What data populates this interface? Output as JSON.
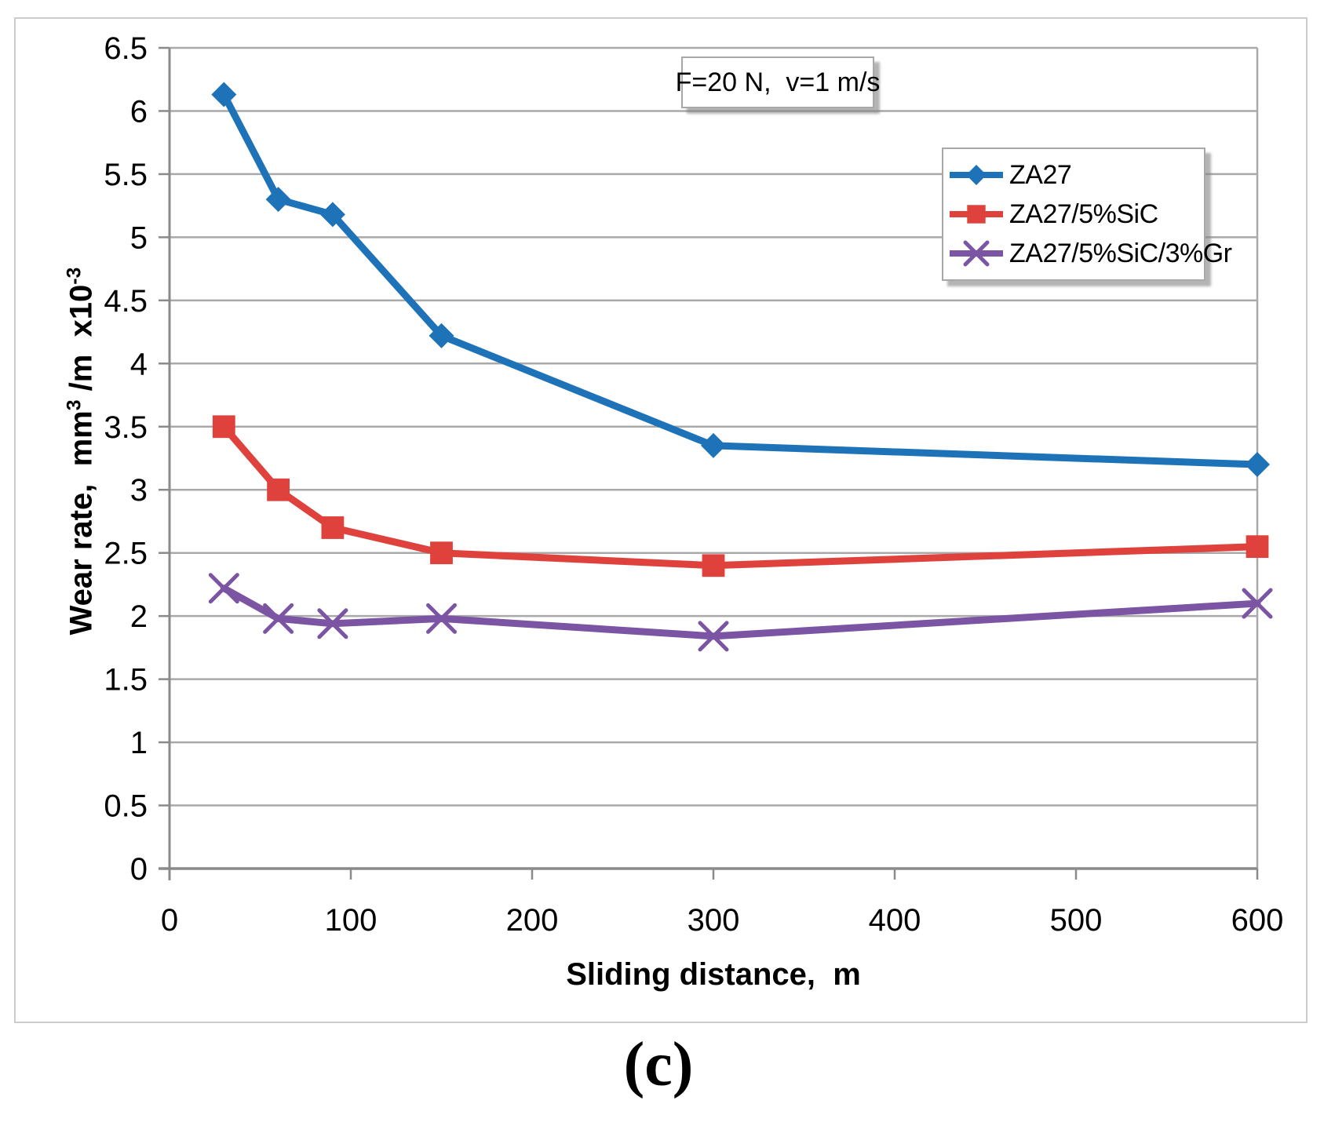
{
  "figure": {
    "caption": "(c)",
    "annotation": "F=20 N,  v=1 m/s"
  },
  "chart_data": {
    "type": "line",
    "title": "",
    "xlabel": "Sliding distance,  m",
    "ylabel": "Wear rate, mm3/m x10-3",
    "ylabel_parts": {
      "prefix": "Wear rate,  mm",
      "sup1": "3",
      "mid": " /m  x10",
      "sup2": "-3"
    },
    "x": [
      30,
      60,
      90,
      150,
      300,
      600
    ],
    "series": [
      {
        "name": "ZA27",
        "marker": "diamond",
        "color": "#1E73B8",
        "values": [
          6.13,
          5.3,
          5.18,
          4.22,
          3.35,
          3.2
        ]
      },
      {
        "name": "ZA27/5%SiC",
        "marker": "square",
        "color": "#DF423C",
        "values": [
          3.5,
          3.0,
          2.7,
          2.5,
          2.4,
          2.55
        ]
      },
      {
        "name": "ZA27/5%SiC/3%Gr",
        "marker": "x",
        "color": "#7B55A3",
        "values": [
          2.22,
          1.98,
          1.94,
          1.98,
          1.84,
          2.1
        ]
      }
    ],
    "xlim": [
      0,
      600
    ],
    "ylim": [
      0,
      6.5
    ],
    "xticks": [
      0,
      100,
      200,
      300,
      400,
      500,
      600
    ],
    "yticks": [
      0,
      0.5,
      1,
      1.5,
      2,
      2.5,
      3,
      3.5,
      4,
      4.5,
      5,
      5.5,
      6,
      6.5
    ],
    "grid": true,
    "legend_position": "upper-right",
    "colors": {
      "gridline": "#A9A9A9",
      "axis": "#8A8A8A",
      "frame_border": "#CCCCCC",
      "text": "#000000",
      "background": "#FFFFFF"
    }
  }
}
